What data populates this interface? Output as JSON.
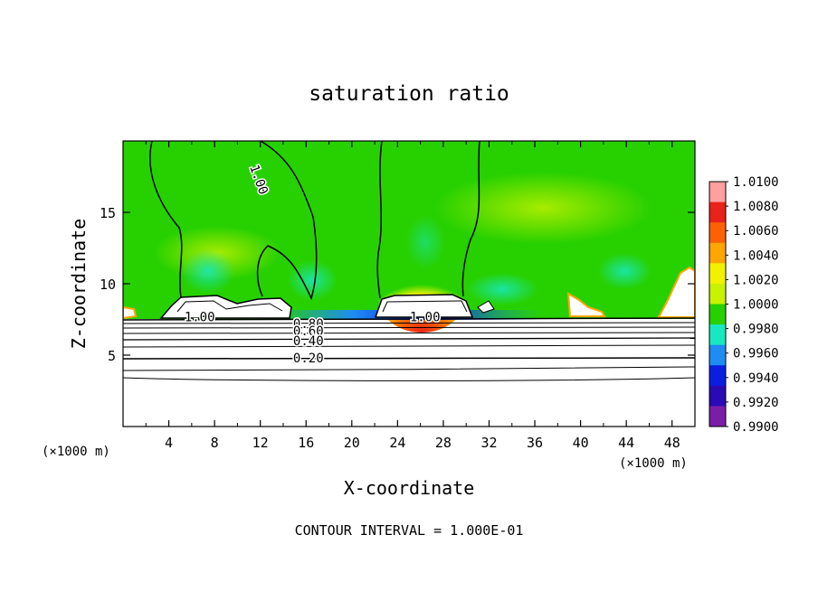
{
  "chart_data": {
    "type": "heatmap",
    "title": "saturation ratio",
    "xlabel": "X-coordinate",
    "ylabel": "Z-coordinate",
    "x_unit": "(×1000 m)",
    "y_unit": "(×1000 m)",
    "xlim": [
      0,
      50
    ],
    "ylim": [
      0,
      20
    ],
    "x_ticks": [
      "4",
      "8",
      "12",
      "16",
      "20",
      "24",
      "28",
      "32",
      "36",
      "40",
      "44",
      "48"
    ],
    "y_ticks": [
      "5",
      "10",
      "15"
    ],
    "footer": "CONTOUR INTERVAL = 1.000E-01",
    "colorbar": {
      "labels": [
        "1.0100",
        "1.0080",
        "1.0060",
        "1.0040",
        "1.0020",
        "1.0000",
        "0.9980",
        "0.9960",
        "0.9940",
        "0.9920",
        "0.9900"
      ],
      "colors": [
        "#ff9fa0",
        "#e8231a",
        "#fc6203",
        "#ffa602",
        "#f2f200",
        "#c8f200",
        "#27d100",
        "#18e8c0",
        "#1e8cf2",
        "#0a1ee0",
        "#2a0ab4",
        "#7a1ea8"
      ],
      "placement": "right"
    },
    "contour_labels": [
      {
        "text": "1.00",
        "x": 11.9,
        "z": 17.3
      },
      {
        "text": "1.00",
        "x": 6.7,
        "z": 7.7
      },
      {
        "text": "1.00",
        "x": 26.4,
        "z": 7.7
      },
      {
        "text": "0.80",
        "x": 16.2,
        "z": 7.2
      },
      {
        "text": "0.60",
        "x": 16.2,
        "z": 6.7
      },
      {
        "text": "0.40",
        "x": 16.2,
        "z": 6.0
      },
      {
        "text": "0.20",
        "x": 16.2,
        "z": 4.8
      }
    ],
    "series": [
      {
        "values": [
          0.2,
          0.4,
          0.6,
          0.8,
          1.0
        ]
      }
    ]
  }
}
